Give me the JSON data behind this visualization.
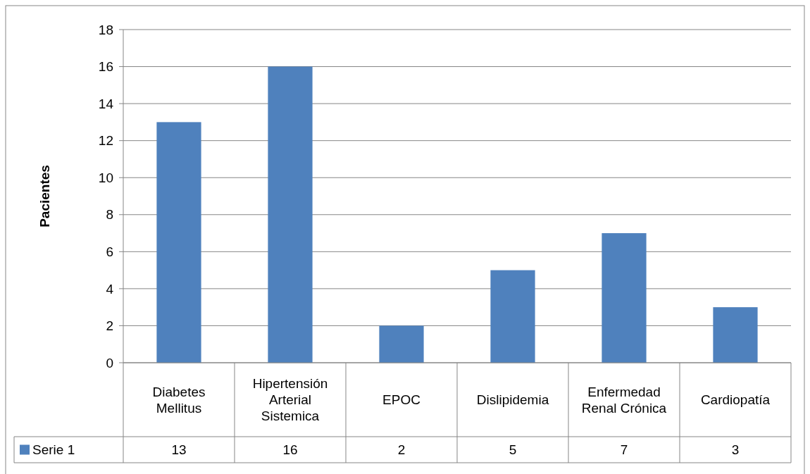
{
  "chart_data": {
    "type": "bar",
    "ylabel": "Pacientes",
    "categories": [
      "Diabetes Mellitus",
      "Hipertensión Arterial Sistemica",
      "EPOC",
      "Dislipidemia",
      "Enfermedad Renal Crónica",
      "Cardiopatía"
    ],
    "series": [
      {
        "name": "Serie 1",
        "color": "#4f81bd",
        "values": [
          13,
          16,
          2,
          5,
          7,
          3
        ]
      }
    ],
    "ylim": [
      0,
      18
    ],
    "yticks": [
      0,
      2,
      4,
      6,
      8,
      10,
      12,
      14,
      16,
      18
    ],
    "grid": "y",
    "data_labels": true,
    "legend": "bottom"
  }
}
